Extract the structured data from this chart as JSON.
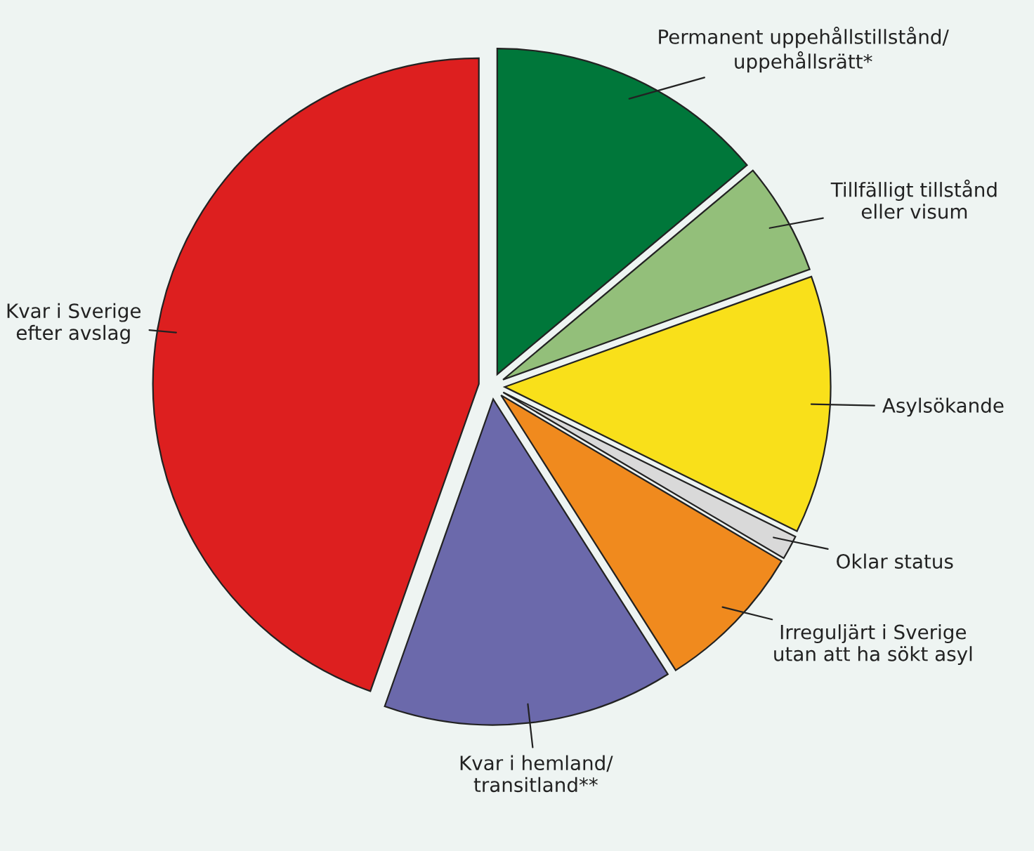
{
  "chart_data": {
    "type": "pie",
    "categories": [
      "Permanent uppehållstillstånd/\nuppehållsrätt*",
      "Tillfälligt tillstånd\neller visum",
      "Asylsökande",
      "Oklar status",
      "Irreguljärt i Sverige\nutan att ha sökt asyl",
      "Kvar i hemland/\ntransitland**",
      "Kvar i Sverige\nefter avslag"
    ],
    "values": [
      13.9,
      5.6,
      12.8,
      1.2,
      7.5,
      14.4,
      44.6
    ],
    "colors": [
      "#00773a",
      "#93bf7a",
      "#f9e01a",
      "#d9d9d9",
      "#f08a1e",
      "#6b69ab",
      "#dd1f1f"
    ]
  }
}
